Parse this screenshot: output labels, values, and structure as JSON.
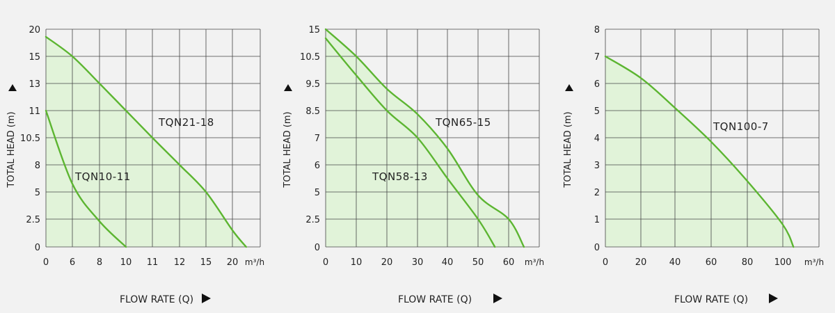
{
  "colors": {
    "curve": "#5cb531",
    "fill": "#e1f3d9",
    "grid": "#444444",
    "text": "#222222"
  },
  "chart_data": [
    {
      "type": "line",
      "xlabel": "FLOW RATE (Q)",
      "ylabel": "TOTAL HEAD (m)",
      "x_unit": "m³/h",
      "x_ticks": [
        "0",
        "6",
        "8",
        "10",
        "11",
        "12",
        "15",
        "20"
      ],
      "y_ticks": [
        "0",
        "2.5",
        "5",
        "8",
        "10.5",
        "11",
        "13",
        "15",
        "20"
      ],
      "series": [
        {
          "name": "TQN21-18",
          "points": [
            [
              0,
              18.6
            ],
            [
              6,
              15
            ],
            [
              8,
              13
            ],
            [
              10,
              11
            ],
            [
              11,
              10.5
            ],
            [
              12,
              8
            ],
            [
              15,
              5
            ],
            [
              20,
              1.5
            ],
            [
              22.6,
              0
            ]
          ]
        },
        {
          "name": "TQN10-11",
          "points": [
            [
              0,
              11
            ],
            [
              6,
              5.9
            ],
            [
              8,
              2.3
            ],
            [
              10,
              0
            ]
          ]
        }
      ]
    },
    {
      "type": "line",
      "xlabel": "FLOW RATE (Q)",
      "ylabel": "TOTAL HEAD (m)",
      "x_unit": "m³/h",
      "x_ticks": [
        "0",
        "10",
        "20",
        "30",
        "40",
        "50",
        "60"
      ],
      "y_ticks": [
        "0",
        "2.5",
        "5",
        "6",
        "7",
        "8.5",
        "9.5",
        "10.5",
        "15"
      ],
      "series": [
        {
          "name": "TQN65-15",
          "points": [
            [
              0,
              15
            ],
            [
              10,
              10.5
            ],
            [
              20,
              9.3
            ],
            [
              30,
              8.3
            ],
            [
              40,
              6.6
            ],
            [
              50,
              4.7
            ],
            [
              60,
              2.5
            ],
            [
              65,
              0
            ]
          ]
        },
        {
          "name": "TQN58-13",
          "points": [
            [
              0,
              13.5
            ],
            [
              10,
              9.8
            ],
            [
              20,
              8.5
            ],
            [
              30,
              7
            ],
            [
              40,
              5.5
            ],
            [
              50,
              2.5
            ],
            [
              55.5,
              0
            ]
          ]
        }
      ]
    },
    {
      "type": "line",
      "xlabel": "FLOW RATE (Q)",
      "ylabel": "TOTAL HEAD (m)",
      "x_unit": "m³/h",
      "x_ticks": [
        "0",
        "20",
        "40",
        "60",
        "80",
        "100"
      ],
      "y_ticks": [
        "0",
        "1",
        "2",
        "3",
        "4",
        "5",
        "6",
        "7",
        "8"
      ],
      "series": [
        {
          "name": "TQN100-7",
          "points": [
            [
              0,
              7
            ],
            [
              20,
              6.2
            ],
            [
              40,
              5.1
            ],
            [
              60,
              3.85
            ],
            [
              80,
              2.4
            ],
            [
              100,
              0.8
            ],
            [
              106,
              0
            ]
          ]
        }
      ]
    }
  ]
}
